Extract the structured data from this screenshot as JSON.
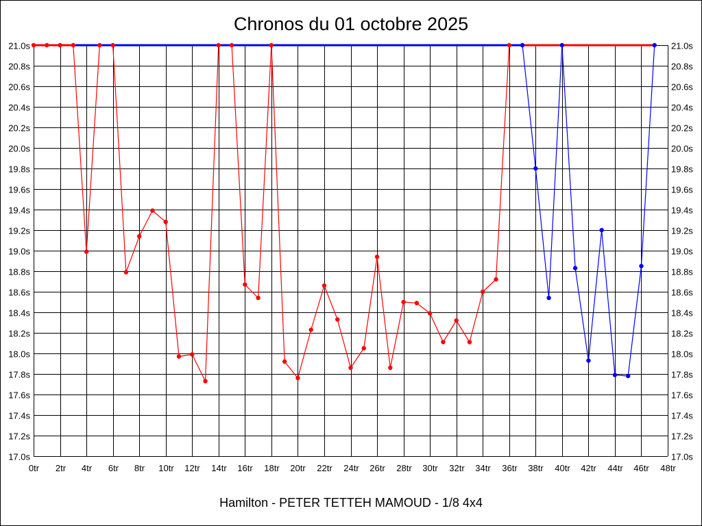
{
  "chart_data": {
    "type": "line",
    "title": "Chronos du 01 octobre 2025",
    "subtitle": "Hamilton - PETER TETTEH MAMOUD - 1/8 4x4",
    "xlabel": "",
    "ylabel": "",
    "xlim": [
      0,
      48
    ],
    "ylim": [
      17.0,
      21.0
    ],
    "x_ticks": [
      "0tr",
      "2tr",
      "4tr",
      "6tr",
      "8tr",
      "10tr",
      "12tr",
      "14tr",
      "16tr",
      "18tr",
      "20tr",
      "22tr",
      "24tr",
      "26tr",
      "28tr",
      "30tr",
      "32tr",
      "34tr",
      "36tr",
      "38tr",
      "40tr",
      "42tr",
      "44tr",
      "46tr",
      "48tr"
    ],
    "y_ticks": [
      "17.0s",
      "17.2s",
      "17.4s",
      "17.6s",
      "17.8s",
      "18.0s",
      "18.2s",
      "18.4s",
      "18.6s",
      "18.8s",
      "19.0s",
      "19.2s",
      "19.4s",
      "19.6s",
      "19.8s",
      "20.0s",
      "20.2s",
      "20.4s",
      "20.6s",
      "20.8s",
      "21.0s"
    ],
    "grid": true,
    "series": [
      {
        "color": "#ff0000",
        "points": [
          [
            0,
            21.0
          ],
          [
            1,
            21.0
          ],
          [
            2,
            21.0
          ],
          [
            3,
            21.0
          ],
          [
            4,
            18.99
          ],
          [
            5,
            21.0
          ],
          [
            6,
            21.0
          ],
          [
            7,
            18.79
          ],
          [
            8,
            19.14
          ],
          [
            9,
            19.39
          ],
          [
            10,
            19.28
          ],
          [
            11,
            17.97
          ],
          [
            12,
            17.99
          ],
          [
            13,
            17.73
          ],
          [
            14,
            21.0
          ],
          [
            15,
            21.0
          ],
          [
            16,
            18.67
          ],
          [
            17,
            18.54
          ],
          [
            18,
            21.0
          ],
          [
            19,
            17.92
          ],
          [
            20,
            17.76
          ],
          [
            21,
            18.23
          ],
          [
            22,
            18.66
          ],
          [
            23,
            18.33
          ],
          [
            24,
            17.86
          ],
          [
            25,
            18.05
          ],
          [
            26,
            18.94
          ],
          [
            27,
            17.86
          ],
          [
            28,
            18.5
          ],
          [
            29,
            18.49
          ],
          [
            30,
            18.39
          ],
          [
            31,
            18.11
          ],
          [
            32,
            18.32
          ],
          [
            33,
            18.11
          ],
          [
            34,
            18.6
          ],
          [
            35,
            18.72
          ],
          [
            36,
            21.0
          ]
        ]
      },
      {
        "color": "#0000ff",
        "points": [
          [
            37,
            21.0
          ],
          [
            38,
            19.8
          ],
          [
            39,
            18.54
          ],
          [
            40,
            21.0
          ],
          [
            41,
            18.83
          ],
          [
            42,
            17.93
          ],
          [
            43,
            19.2
          ],
          [
            44,
            17.79
          ],
          [
            45,
            17.78
          ],
          [
            46,
            18.85
          ],
          [
            47,
            21.0
          ]
        ]
      }
    ],
    "capped_value": 21.0
  },
  "colors": {
    "red": "#ff0000",
    "blue": "#0000ff",
    "grid": "#000000"
  }
}
